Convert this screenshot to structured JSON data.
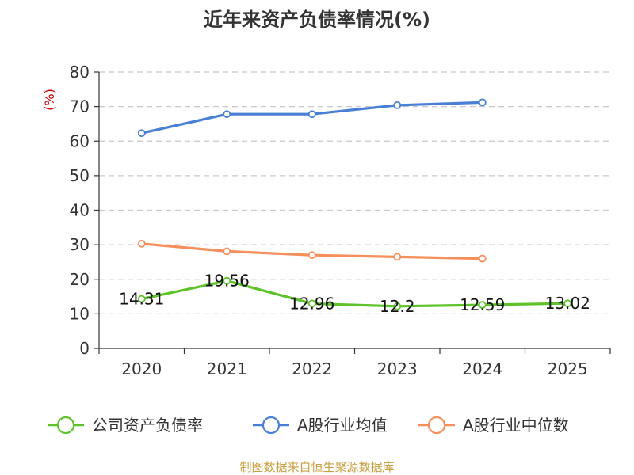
{
  "chart_data": {
    "type": "line",
    "title": "近年来资产负债率情况(%)",
    "ylabel": "(%)",
    "categories": [
      "2020",
      "2021",
      "2022",
      "2023",
      "2024",
      "2025"
    ],
    "ylim": [
      0,
      80
    ],
    "yticks": [
      0,
      10,
      20,
      30,
      40,
      50,
      60,
      70,
      80
    ],
    "grid": true,
    "legend_position": "bottom",
    "series": [
      {
        "name": "公司资产负债率",
        "color": "#5ec32b",
        "values": [
          14.31,
          19.56,
          12.96,
          12.2,
          12.59,
          13.02
        ],
        "labels": [
          "14.31",
          "19.56",
          "12.96",
          "12.2",
          "12.59",
          "13.02"
        ]
      },
      {
        "name": "A股行业均值",
        "color": "#4a7fd6",
        "values": [
          62.3,
          67.8,
          67.8,
          70.4,
          71.2,
          null
        ]
      },
      {
        "name": "A股行业中位数",
        "color": "#f58f5c",
        "values": [
          30.3,
          28.1,
          27.0,
          26.5,
          26.0,
          null
        ]
      }
    ]
  },
  "source": "制图数据来自恒生聚源数据库"
}
